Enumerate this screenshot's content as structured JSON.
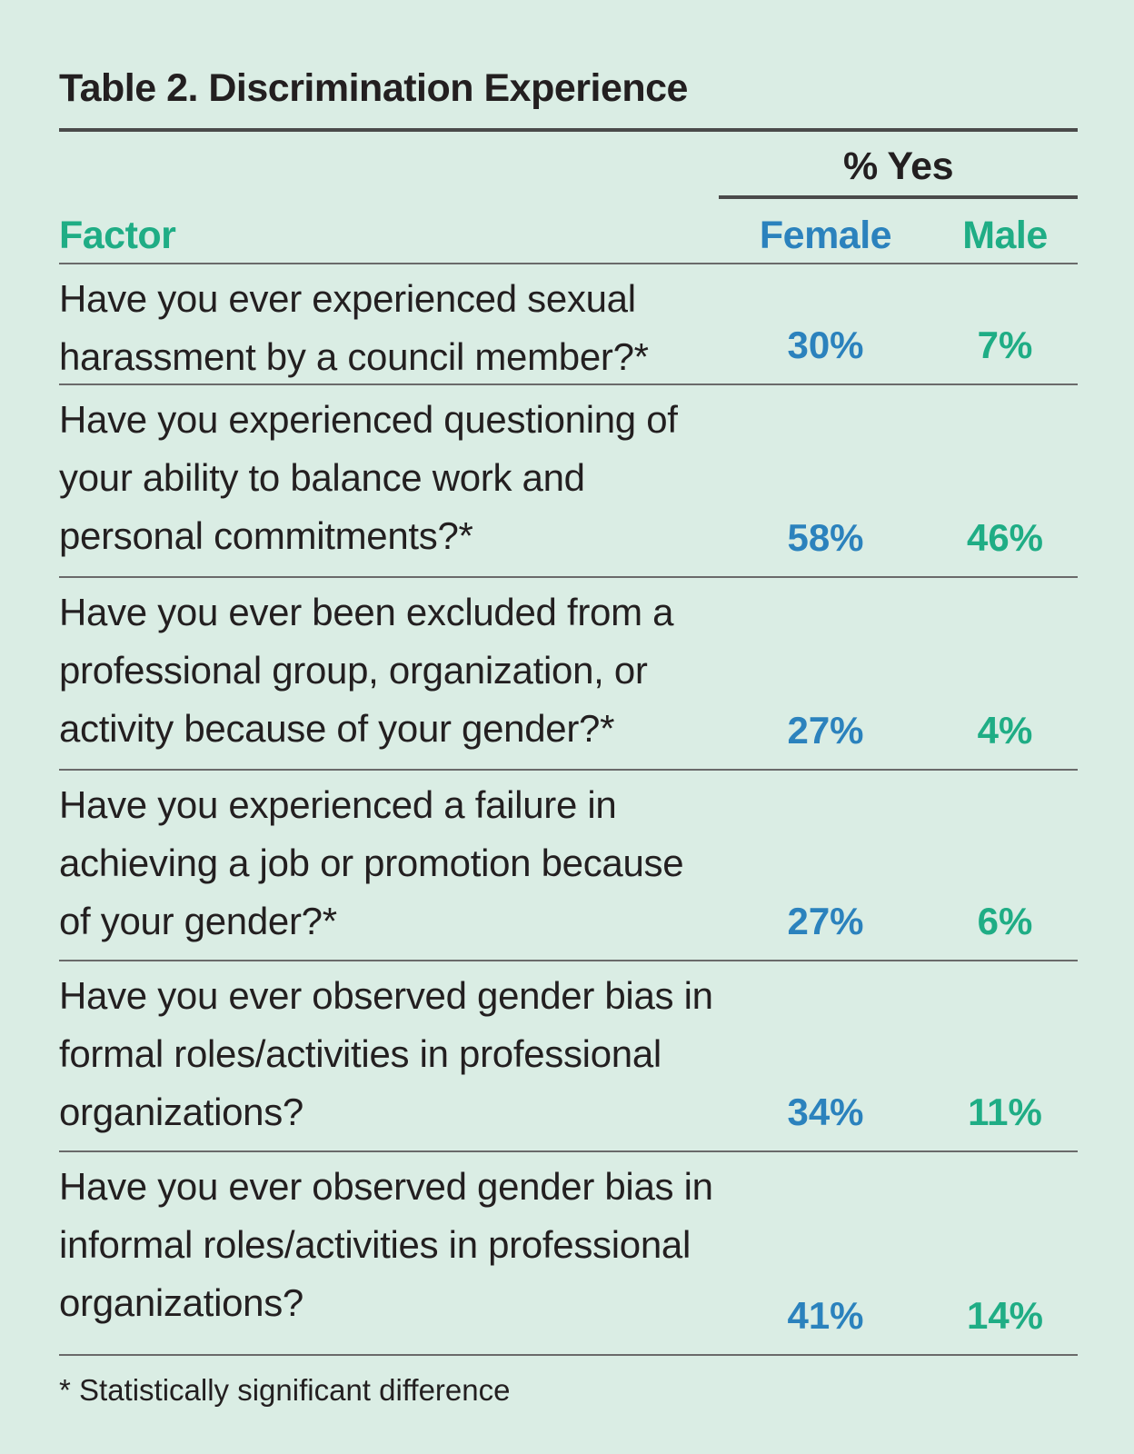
{
  "title": "Table 2. Discrimination Experience",
  "group_header": "% Yes",
  "columns": {
    "factor": "Factor",
    "female": "Female",
    "male": "Male"
  },
  "rows": [
    {
      "question": "Have you ever experienced sexual harassment by a council member?*",
      "female": "30%",
      "male": "7%"
    },
    {
      "question": "Have you experienced questioning of your ability to balance work and personal commitments?*",
      "female": "58%",
      "male": "46%"
    },
    {
      "question": "Have you ever been excluded from a professional group, organization, or activity because of your gender?*",
      "female": "27%",
      "male": "4%"
    },
    {
      "question": "Have you experienced a failure in achieving a job or promotion because of your gender?*",
      "female": "27%",
      "male": "6%"
    },
    {
      "question": "Have you ever observed gender bias in formal roles/activities in professional organizations?",
      "female": "34%",
      "male": "11%"
    },
    {
      "question": "Have you ever observed gender bias in informal roles/activities in professional organizations?",
      "female": "41%",
      "male": "14%"
    }
  ],
  "footnote": "* Statistically significant difference",
  "colors": {
    "background": "#daede4",
    "female": "#2b82bd",
    "male": "#1fad85",
    "factor_header": "#1fad85",
    "text": "#231f20"
  }
}
